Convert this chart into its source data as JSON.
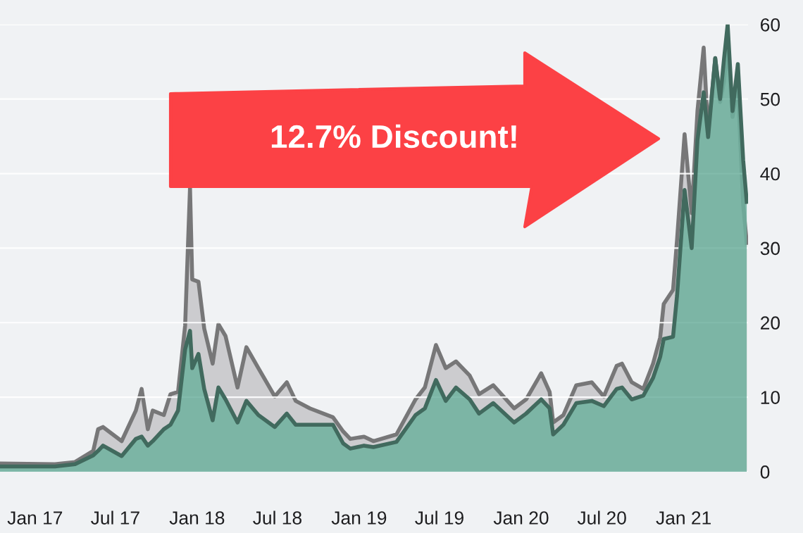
{
  "chart_data": {
    "type": "area",
    "x": [
      "2016-10-14",
      "2017-02-15",
      "2017-04-01",
      "2017-05-12",
      "2017-05-23",
      "2017-06-03",
      "2017-07-15",
      "2017-08-16",
      "2017-08-29",
      "2017-09-12",
      "2017-09-23",
      "2017-10-18",
      "2017-11-02",
      "2017-11-19",
      "2017-12-05",
      "2017-12-16",
      "2017-12-21",
      "2018-01-04",
      "2018-01-17",
      "2018-02-05",
      "2018-02-18",
      "2018-03-06",
      "2018-04-02",
      "2018-04-22",
      "2018-05-19",
      "2018-06-25",
      "2018-07-22",
      "2018-08-11",
      "2018-09-12",
      "2018-11-03",
      "2018-11-26",
      "2018-12-12",
      "2019-01-12",
      "2019-02-02",
      "2019-03-26",
      "2019-05-08",
      "2019-05-29",
      "2019-06-23",
      "2019-07-15",
      "2019-08-07",
      "2019-09-07",
      "2019-09-28",
      "2019-10-30",
      "2019-12-16",
      "2020-01-12",
      "2020-02-15",
      "2020-03-05",
      "2020-03-13",
      "2020-04-05",
      "2020-05-04",
      "2020-06-08",
      "2020-07-05",
      "2020-08-03",
      "2020-08-15",
      "2020-09-06",
      "2020-10-02",
      "2020-10-24",
      "2020-11-09",
      "2020-11-17",
      "2020-12-08",
      "2020-12-17",
      "2021-01-03",
      "2021-01-19",
      "2021-02-01",
      "2021-02-15",
      "2021-02-25",
      "2021-03-13",
      "2021-03-24",
      "2021-04-02",
      "2021-04-10",
      "2021-04-21",
      "2021-05-03",
      "2021-05-15",
      "2021-05-23"
    ],
    "series": [
      {
        "color": "#c6c6c8",
        "values": [
          1.1,
          1.0,
          1.3,
          2.8,
          5.7,
          6.0,
          4.1,
          8.2,
          11.1,
          5.7,
          8.2,
          7.6,
          10.4,
          10.7,
          19.6,
          38.1,
          25.8,
          25.5,
          19.2,
          14.5,
          19.8,
          18.2,
          11.3,
          16.7,
          13.9,
          10.1,
          12.0,
          9.5,
          8.5,
          7.3,
          5.4,
          4.4,
          4.7,
          4.1,
          5.0,
          9.7,
          11.3,
          17.0,
          13.9,
          14.8,
          12.9,
          10.4,
          11.6,
          8.5,
          9.7,
          13.2,
          10.7,
          6.6,
          7.6,
          11.6,
          12.0,
          10.1,
          14.2,
          14.5,
          12.0,
          11.1,
          14.5,
          18.0,
          22.5,
          24.4,
          31.1,
          45.3,
          34.7,
          48.4,
          56.9,
          45.3,
          55.5,
          49.6,
          52.4,
          57.5,
          47.6,
          51.6,
          35.8,
          30.7
        ]
      },
      {
        "color": "#6db09d",
        "values": [
          0.7,
          0.7,
          1.0,
          2.2,
          2.8,
          3.5,
          2.1,
          4.4,
          4.7,
          3.5,
          4.1,
          5.7,
          6.3,
          8.2,
          16.4,
          18.9,
          13.9,
          15.8,
          11.1,
          6.9,
          11.3,
          9.7,
          6.6,
          9.5,
          7.6,
          6.0,
          7.8,
          6.3,
          6.3,
          6.3,
          3.8,
          3.1,
          3.5,
          3.3,
          4.0,
          7.6,
          8.5,
          12.3,
          9.5,
          11.3,
          9.7,
          7.8,
          9.2,
          6.6,
          7.8,
          9.7,
          8.5,
          5.0,
          6.3,
          9.2,
          9.5,
          8.8,
          11.1,
          11.3,
          9.7,
          10.2,
          12.6,
          15.4,
          17.8,
          18.1,
          23.6,
          37.8,
          30.0,
          44.5,
          50.9,
          44.9,
          55.5,
          50.0,
          55.5,
          60.0,
          48.4,
          54.7,
          41.8,
          36.2
        ]
      }
    ],
    "xlim": [
      "2016-10-14",
      "2021-05-26"
    ],
    "xticks": [
      {
        "value": "2017-01-01",
        "label": "Jan 17"
      },
      {
        "value": "2017-07-01",
        "label": "Jul 17"
      },
      {
        "value": "2018-01-01",
        "label": "Jan 18"
      },
      {
        "value": "2018-07-01",
        "label": "Jul 18"
      },
      {
        "value": "2019-01-01",
        "label": "Jan 19"
      },
      {
        "value": "2019-07-01",
        "label": "Jul 19"
      },
      {
        "value": "2020-01-01",
        "label": "Jan 20"
      },
      {
        "value": "2020-07-01",
        "label": "Jul 20"
      },
      {
        "value": "2021-01-01",
        "label": "Jan 21"
      }
    ],
    "ylim": [
      0,
      60
    ],
    "yticks": [
      0,
      10,
      20,
      30,
      40,
      50,
      60
    ],
    "grid": "y",
    "legend": false,
    "annotations": [
      "12.7% Discount!"
    ]
  }
}
